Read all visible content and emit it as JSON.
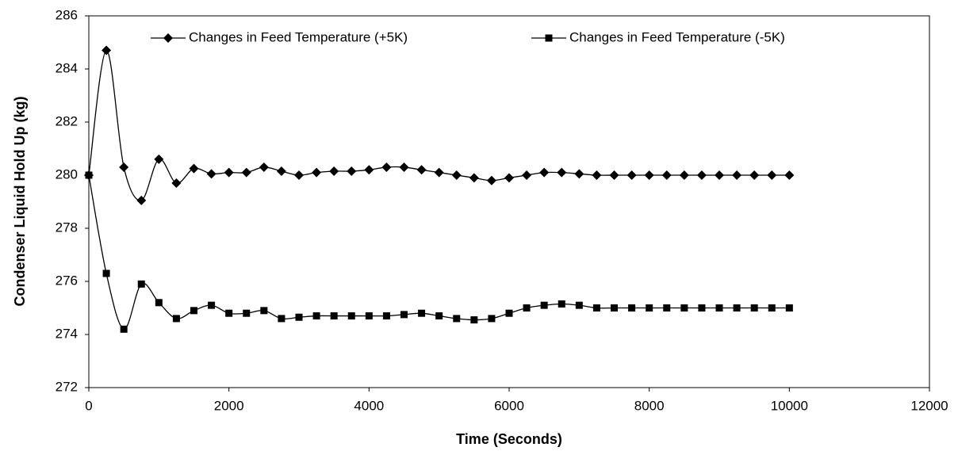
{
  "chart_data": {
    "type": "line",
    "x_label": "Time (Seconds)",
    "y_label": "Condenser Liquid Hold Up (kg)",
    "x": [
      0,
      250,
      500,
      750,
      1000,
      1250,
      1500,
      1750,
      2000,
      2250,
      2500,
      2750,
      3000,
      3250,
      3500,
      3750,
      4000,
      4250,
      4500,
      4750,
      5000,
      5250,
      5500,
      5750,
      6000,
      6250,
      6500,
      6750,
      7000,
      7250,
      7500,
      7750,
      8000,
      8250,
      8500,
      8750,
      9000,
      9250,
      9500,
      9750,
      10000
    ],
    "series": [
      {
        "name": "Changes in Feed Temperature (+5K)",
        "color": "#000000",
        "marker": "diamond",
        "values": [
          280,
          284.7,
          280.3,
          279.05,
          280.6,
          279.7,
          280.25,
          280.05,
          280.1,
          280.1,
          280.3,
          280.15,
          280,
          280.1,
          280.15,
          280.15,
          280.2,
          280.3,
          280.3,
          280.2,
          280.1,
          280,
          279.9,
          279.8,
          279.9,
          280,
          280.1,
          280.1,
          280.05,
          280,
          280,
          280,
          280,
          280,
          280,
          280,
          280,
          280,
          280,
          280,
          280
        ]
      },
      {
        "name": "Changes in Feed Temperature (-5K)",
        "color": "#000000",
        "marker": "square",
        "values": [
          280,
          276.3,
          274.2,
          275.9,
          275.2,
          274.6,
          274.9,
          275.1,
          274.8,
          274.8,
          274.9,
          274.6,
          274.65,
          274.7,
          274.7,
          274.7,
          274.7,
          274.7,
          274.75,
          274.8,
          274.7,
          274.6,
          274.55,
          274.6,
          274.8,
          275,
          275.1,
          275.15,
          275.1,
          275,
          275,
          275,
          275,
          275,
          275,
          275,
          275,
          275,
          275,
          275,
          275
        ]
      }
    ],
    "xlim": [
      0,
      12000
    ],
    "xticks": [
      0,
      2000,
      4000,
      6000,
      8000,
      10000,
      12000
    ],
    "ylim": [
      272,
      286
    ],
    "yticks": [
      272,
      274,
      276,
      278,
      280,
      282,
      284,
      286
    ],
    "grid": false,
    "legend": "top"
  }
}
